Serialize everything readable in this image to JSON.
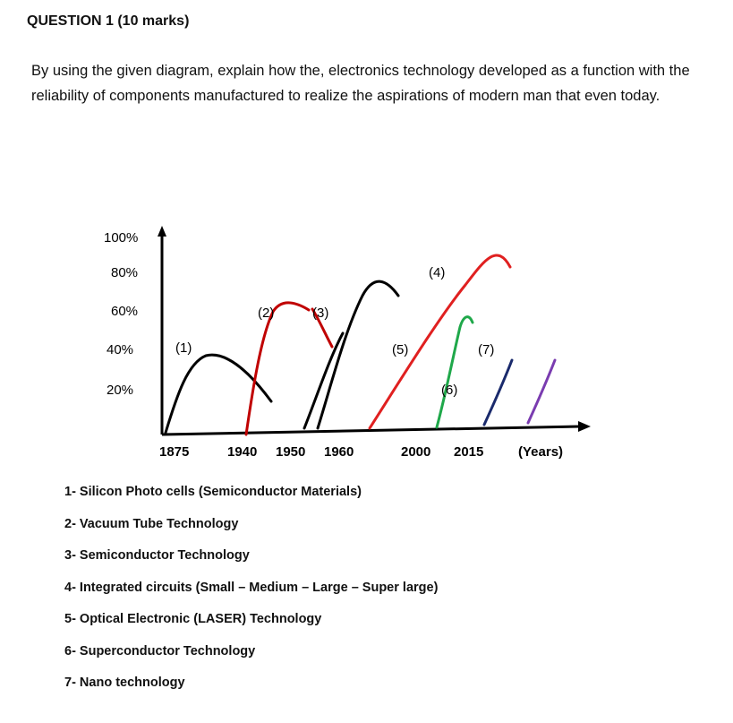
{
  "question": {
    "heading": "QUESTION 1 (10 marks)",
    "prompt": "By using the given diagram, explain how the, electronics technology developed as a function with the reliability of components manufactured to realize the aspirations of modern man that even today."
  },
  "diagram": {
    "y_ticks": [
      "100%",
      "80%",
      "60%",
      "40%",
      "20%"
    ],
    "x_ticks": [
      "1875",
      "1940",
      "1950",
      "1960",
      "2000",
      "2015"
    ],
    "x_unit": "(Years)",
    "curves": [
      {
        "label": "(1)",
        "color": "#000000"
      },
      {
        "label": "(2)",
        "color": "#c00000"
      },
      {
        "label": "(3)",
        "color": "#000000"
      },
      {
        "label": "(4)",
        "color": "#e02020"
      },
      {
        "label": "(5)",
        "color": "#000000"
      },
      {
        "label": "(6)",
        "color": "#1fa84a"
      },
      {
        "label": "(7)",
        "color": "#1a2a6c"
      },
      {
        "label": "",
        "color": "#7a3cb0"
      }
    ]
  },
  "legend": [
    "1- Silicon Photo cells (Semiconductor Materials)",
    "2- Vacuum Tube Technology",
    "3- Semiconductor Technology",
    "4- Integrated circuits (Small – Medium – Large – Super large)",
    "5- Optical Electronic (LASER) Technology",
    "6- Superconductor Technology",
    "7-  Nano technology"
  ]
}
